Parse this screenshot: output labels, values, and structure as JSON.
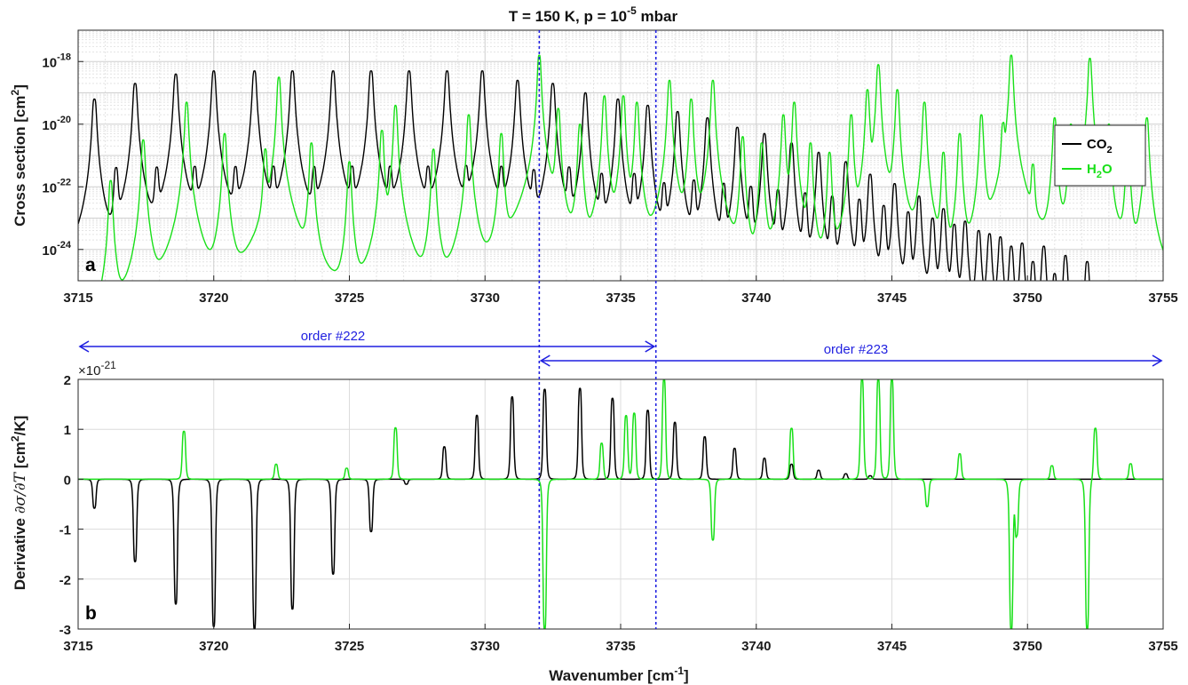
{
  "title": {
    "main": "T = 150 K, p = 10",
    "sup": "-5",
    "tail": " mbar"
  },
  "chart_data": [
    {
      "panel": "a",
      "type": "line",
      "ylabel": {
        "main": "Cross section [cm",
        "sup": "2",
        "tail": "]"
      },
      "yscale": "log",
      "ylim": [
        1e-25,
        1e-17
      ],
      "yticks": [
        {
          "base": "10",
          "exp": "-18",
          "value": -18
        },
        {
          "base": "10",
          "exp": "-20",
          "value": -20
        },
        {
          "base": "10",
          "exp": "-22",
          "value": -22
        },
        {
          "base": "10",
          "exp": "-24",
          "value": -24
        }
      ],
      "xlim": [
        3715,
        3755
      ],
      "xticks": [
        "3715",
        "3720",
        "3725",
        "3730",
        "3735",
        "3740",
        "3745",
        "3750",
        "3755"
      ],
      "grid": true,
      "legend": {
        "placement": "right",
        "entries": [
          {
            "main": "CO",
            "sub": "2",
            "tail": "",
            "color": "#000000"
          },
          {
            "main": "H",
            "sub": "2",
            "tail": "O",
            "color": "#19e019"
          }
        ]
      },
      "series": [
        {
          "name": "CO2",
          "color": "#000000",
          "peaks": [
            {
              "x": 3715.6,
              "y": -19.2
            },
            {
              "x": 3717.1,
              "y": -18.7
            },
            {
              "x": 3718.6,
              "y": -18.4
            },
            {
              "x": 3720.0,
              "y": -18.3
            },
            {
              "x": 3721.5,
              "y": -18.3
            },
            {
              "x": 3722.9,
              "y": -18.3
            },
            {
              "x": 3724.4,
              "y": -18.3
            },
            {
              "x": 3725.8,
              "y": -18.3
            },
            {
              "x": 3727.2,
              "y": -18.3
            },
            {
              "x": 3728.6,
              "y": -18.3
            },
            {
              "x": 3729.9,
              "y": -18.3
            },
            {
              "x": 3731.2,
              "y": -18.6
            },
            {
              "x": 3732.5,
              "y": -18.7
            },
            {
              "x": 3733.7,
              "y": -19.0
            },
            {
              "x": 3734.9,
              "y": -19.2
            },
            {
              "x": 3736.0,
              "y": -19.4
            },
            {
              "x": 3737.1,
              "y": -19.6
            },
            {
              "x": 3738.2,
              "y": -19.8
            },
            {
              "x": 3739.3,
              "y": -20.1
            },
            {
              "x": 3740.3,
              "y": -20.3
            },
            {
              "x": 3741.3,
              "y": -20.6
            },
            {
              "x": 3742.3,
              "y": -20.9
            },
            {
              "x": 3743.3,
              "y": -21.2
            },
            {
              "x": 3744.2,
              "y": -21.6
            },
            {
              "x": 3745.1,
              "y": -21.9
            },
            {
              "x": 3746.0,
              "y": -22.3
            },
            {
              "x": 3746.9,
              "y": -22.7
            },
            {
              "x": 3747.7,
              "y": -23.1
            },
            {
              "x": 3748.6,
              "y": -23.5
            },
            {
              "x": 3749.4,
              "y": -23.9
            },
            {
              "x": 3750.2,
              "y": -24.4
            },
            {
              "x": 3751.0,
              "y": -24.8
            },
            {
              "x": 3716.4,
              "y": -21.4
            },
            {
              "x": 3717.9,
              "y": -21.4
            },
            {
              "x": 3719.3,
              "y": -21.4
            },
            {
              "x": 3720.8,
              "y": -21.4
            },
            {
              "x": 3722.2,
              "y": -21.4
            },
            {
              "x": 3723.7,
              "y": -21.4
            },
            {
              "x": 3725.1,
              "y": -21.4
            },
            {
              "x": 3726.5,
              "y": -21.4
            },
            {
              "x": 3727.9,
              "y": -21.4
            },
            {
              "x": 3729.3,
              "y": -21.4
            },
            {
              "x": 3730.6,
              "y": -21.4
            },
            {
              "x": 3731.8,
              "y": -21.5
            },
            {
              "x": 3733.1,
              "y": -21.4
            },
            {
              "x": 3734.3,
              "y": -21.6
            },
            {
              "x": 3735.5,
              "y": -21.6
            },
            {
              "x": 3736.6,
              "y": -21.9
            },
            {
              "x": 3737.7,
              "y": -21.8
            },
            {
              "x": 3738.8,
              "y": -21.9
            },
            {
              "x": 3739.8,
              "y": -22.0
            },
            {
              "x": 3740.8,
              "y": -22.1
            },
            {
              "x": 3741.8,
              "y": -22.2
            },
            {
              "x": 3742.8,
              "y": -22.3
            },
            {
              "x": 3743.8,
              "y": -22.4
            },
            {
              "x": 3744.7,
              "y": -22.6
            },
            {
              "x": 3745.6,
              "y": -22.8
            },
            {
              "x": 3746.5,
              "y": -23.0
            },
            {
              "x": 3747.3,
              "y": -23.2
            },
            {
              "x": 3748.2,
              "y": -23.4
            },
            {
              "x": 3749.0,
              "y": -23.6
            },
            {
              "x": 3749.8,
              "y": -23.8
            },
            {
              "x": 3750.6,
              "y": -23.9
            },
            {
              "x": 3751.4,
              "y": -24.2
            },
            {
              "x": 3752.2,
              "y": -24.4
            }
          ]
        },
        {
          "name": "H2O",
          "color": "#19e019",
          "peaks": [
            {
              "x": 3716.2,
              "y": -21.8
            },
            {
              "x": 3717.4,
              "y": -20.5
            },
            {
              "x": 3719.0,
              "y": -19.3
            },
            {
              "x": 3720.4,
              "y": -20.3
            },
            {
              "x": 3721.9,
              "y": -20.8
            },
            {
              "x": 3722.4,
              "y": -18.5
            },
            {
              "x": 3723.6,
              "y": -20.6
            },
            {
              "x": 3725.0,
              "y": -21.2
            },
            {
              "x": 3726.2,
              "y": -20.2
            },
            {
              "x": 3726.7,
              "y": -19.4
            },
            {
              "x": 3728.1,
              "y": -20.8
            },
            {
              "x": 3729.4,
              "y": -19.7
            },
            {
              "x": 3730.6,
              "y": -20.3
            },
            {
              "x": 3732.0,
              "y": -17.8
            },
            {
              "x": 3732.7,
              "y": -19.5
            },
            {
              "x": 3733.5,
              "y": -20.0
            },
            {
              "x": 3734.4,
              "y": -19.1
            },
            {
              "x": 3735.1,
              "y": -19.1
            },
            {
              "x": 3735.6,
              "y": -19.3
            },
            {
              "x": 3736.8,
              "y": -18.6
            },
            {
              "x": 3737.6,
              "y": -19.2
            },
            {
              "x": 3738.4,
              "y": -18.6
            },
            {
              "x": 3739.5,
              "y": -20.4
            },
            {
              "x": 3740.2,
              "y": -20.6
            },
            {
              "x": 3741.0,
              "y": -19.7
            },
            {
              "x": 3741.4,
              "y": -19.3
            },
            {
              "x": 3742.0,
              "y": -20.6
            },
            {
              "x": 3742.7,
              "y": -20.9
            },
            {
              "x": 3743.5,
              "y": -19.7
            },
            {
              "x": 3744.1,
              "y": -18.9
            },
            {
              "x": 3744.5,
              "y": -18.1
            },
            {
              "x": 3745.2,
              "y": -18.9
            },
            {
              "x": 3746.2,
              "y": -19.3
            },
            {
              "x": 3746.9,
              "y": -20.9
            },
            {
              "x": 3747.5,
              "y": -20.3
            },
            {
              "x": 3748.3,
              "y": -19.7
            },
            {
              "x": 3749.1,
              "y": -20.0
            },
            {
              "x": 3749.4,
              "y": -17.8
            },
            {
              "x": 3750.2,
              "y": -21.3
            },
            {
              "x": 3751.0,
              "y": -19.8
            },
            {
              "x": 3751.6,
              "y": -20.0
            },
            {
              "x": 3752.3,
              "y": -17.9
            },
            {
              "x": 3753.0,
              "y": -20.0
            },
            {
              "x": 3753.7,
              "y": -20.6
            },
            {
              "x": 3754.4,
              "y": -19.8
            }
          ]
        }
      ]
    },
    {
      "panel": "b",
      "type": "line",
      "ylabel": "Derivative ∂σ/∂T [cm²/K]",
      "ylabel_parts": {
        "main": "Derivative ",
        "math": "∂σ/∂T",
        "rest": " [cm",
        "sup": "2",
        "tail": "/K]"
      },
      "yscale": "linear",
      "scale_factor": {
        "base": "×10",
        "exp": "-21"
      },
      "ylim": [
        -3,
        2
      ],
      "yticks": [
        "2",
        "1",
        "0",
        "-1",
        "-2",
        "-3"
      ],
      "xlim": [
        3715,
        3755
      ],
      "xticks": [
        "3715",
        "3720",
        "3725",
        "3730",
        "3735",
        "3740",
        "3745",
        "3750",
        "3755"
      ],
      "xlabel": {
        "main": "Wavenumber [cm",
        "sup": "-1",
        "tail": "]"
      },
      "grid": true,
      "series": [
        {
          "name": "CO2",
          "color": "#000000",
          "peaks": [
            {
              "x": 3715.6,
              "y": -0.58
            },
            {
              "x": 3717.1,
              "y": -1.65
            },
            {
              "x": 3718.6,
              "y": -2.5
            },
            {
              "x": 3720.0,
              "y": -2.95
            },
            {
              "x": 3721.5,
              "y": -3.0
            },
            {
              "x": 3722.9,
              "y": -2.6
            },
            {
              "x": 3724.4,
              "y": -1.9
            },
            {
              "x": 3725.8,
              "y": -1.05
            },
            {
              "x": 3727.1,
              "y": -0.1
            },
            {
              "x": 3728.5,
              "y": 0.65
            },
            {
              "x": 3729.7,
              "y": 1.28
            },
            {
              "x": 3731.0,
              "y": 1.65
            },
            {
              "x": 3732.2,
              "y": 1.8
            },
            {
              "x": 3733.5,
              "y": 1.82
            },
            {
              "x": 3734.7,
              "y": 1.62
            },
            {
              "x": 3736.0,
              "y": 1.38
            },
            {
              "x": 3737.0,
              "y": 1.14
            },
            {
              "x": 3738.1,
              "y": 0.85
            },
            {
              "x": 3739.2,
              "y": 0.62
            },
            {
              "x": 3740.3,
              "y": 0.42
            },
            {
              "x": 3741.3,
              "y": 0.3
            },
            {
              "x": 3742.3,
              "y": 0.18
            },
            {
              "x": 3743.3,
              "y": 0.11
            },
            {
              "x": 3744.2,
              "y": 0.07
            }
          ]
        },
        {
          "name": "H2O",
          "color": "#19e019",
          "peaks": [
            {
              "x": 3718.9,
              "y": 0.96
            },
            {
              "x": 3722.3,
              "y": 0.3
            },
            {
              "x": 3724.9,
              "y": 0.22
            },
            {
              "x": 3726.7,
              "y": 1.03
            },
            {
              "x": 3732.2,
              "y": -3.0
            },
            {
              "x": 3734.3,
              "y": 0.72
            },
            {
              "x": 3735.2,
              "y": 1.27
            },
            {
              "x": 3735.5,
              "y": 1.32
            },
            {
              "x": 3736.6,
              "y": 2.0
            },
            {
              "x": 3738.4,
              "y": -1.22
            },
            {
              "x": 3741.3,
              "y": 1.02
            },
            {
              "x": 3743.9,
              "y": 2.0
            },
            {
              "x": 3744.5,
              "y": 2.0
            },
            {
              "x": 3745.0,
              "y": 2.0
            },
            {
              "x": 3746.3,
              "y": -0.55
            },
            {
              "x": 3747.5,
              "y": 0.51
            },
            {
              "x": 3749.4,
              "y": -3.0
            },
            {
              "x": 3749.6,
              "y": -1.1
            },
            {
              "x": 3750.9,
              "y": 0.27
            },
            {
              "x": 3752.2,
              "y": -3.0
            },
            {
              "x": 3752.5,
              "y": 1.03
            },
            {
              "x": 3753.8,
              "y": 0.31
            }
          ]
        }
      ]
    }
  ],
  "markers": {
    "vertical_lines": [
      3732.0,
      3736.3
    ],
    "color": "#1f1fe0"
  },
  "orders": [
    {
      "label": "order #222",
      "from": 3715.0,
      "to": 3736.3
    },
    {
      "label": "order #223",
      "from": 3732.0,
      "to": 3755.0
    }
  ]
}
